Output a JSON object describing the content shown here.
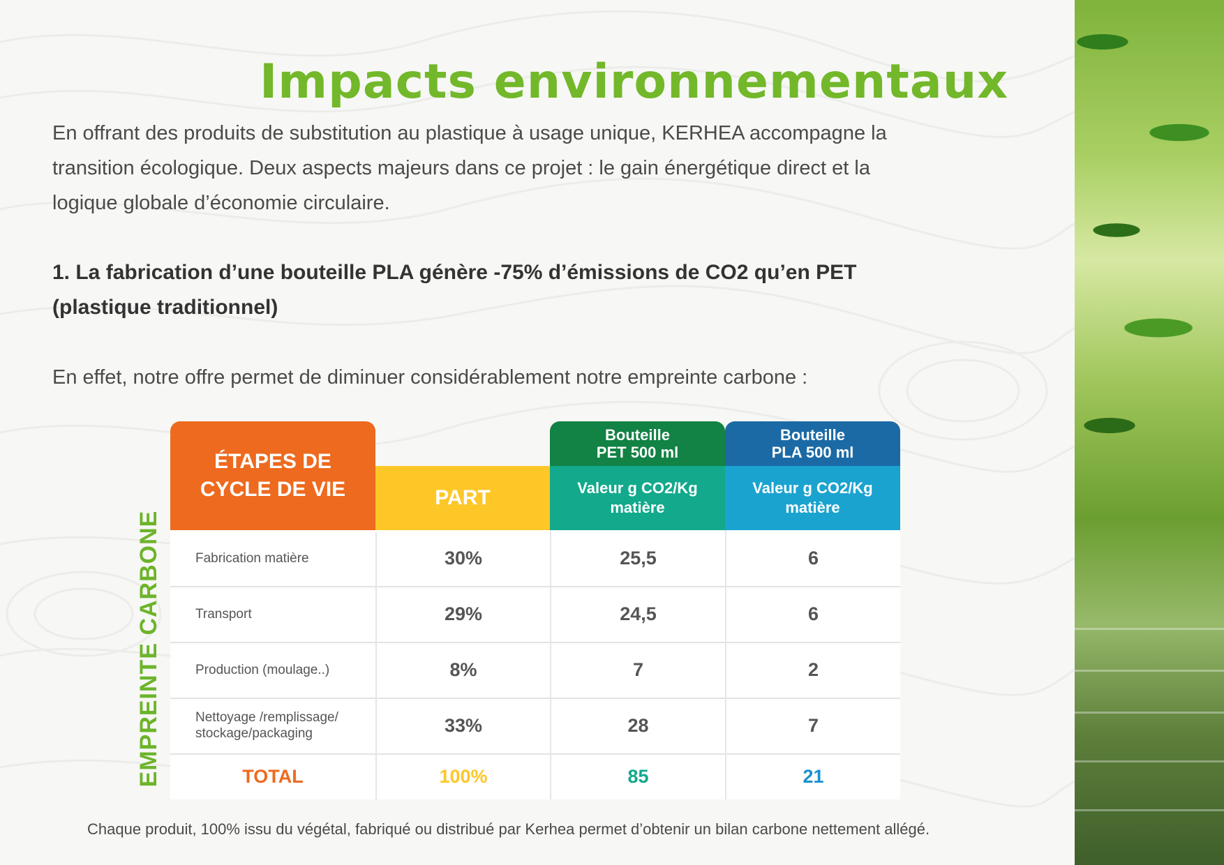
{
  "title": "Impacts environnementaux",
  "intro": "En offrant des produits de substitution au plastique à usage unique, KERHEA accompagne la transition écologique. Deux aspects majeurs dans ce projet : le gain énergétique direct et la logique globale d’économie circulaire.",
  "point1": "1. La fabrication d’une bouteille PLA génère -75% d’émissions de CO2 qu’en PET (plastique traditionnel)",
  "intro2": "En effet, notre offre permet de diminuer considérablement notre empreinte carbone :",
  "table": {
    "side_label": "EMPREINTE CARBONE",
    "col_etapes": "ÉTAPES DE CYCLE DE VIE",
    "col_part": "PART",
    "col_pet_title": "Bouteille PET 500 ml",
    "col_pet_sub": "Valeur g CO2/Kg matière",
    "col_pla_title": "Bouteille PLA 500 ml",
    "col_pla_sub": "Valeur g CO2/Kg matière",
    "rows": [
      {
        "label": "Fabrication matière",
        "part": "30%",
        "pet": "25,5",
        "pla": "6"
      },
      {
        "label": "Transport",
        "part": "29%",
        "pet": "24,5",
        "pla": "6"
      },
      {
        "label": "Production (moulage..)",
        "part": "8%",
        "pet": "7",
        "pla": "2"
      },
      {
        "label": "Nettoyage /remplissage/ stockage/packaging",
        "part": "33%",
        "pet": "28",
        "pla": "7"
      }
    ],
    "total": {
      "label": "TOTAL",
      "part": "100%",
      "pet": "85",
      "pla": "21"
    }
  },
  "footer": "Chaque produit, 100% issu du végétal, fabriqué ou distribué par Kerhea permet d’obtenir un bilan carbone nettement allégé.",
  "colors": {
    "title_green": "#72b82a",
    "orange": "#ee6a1e",
    "yellow": "#fdc728",
    "pet_dark": "#128245",
    "pet_light": "#12a98c",
    "pla_dark": "#1b6aa5",
    "pla_light": "#1ba3d0"
  }
}
